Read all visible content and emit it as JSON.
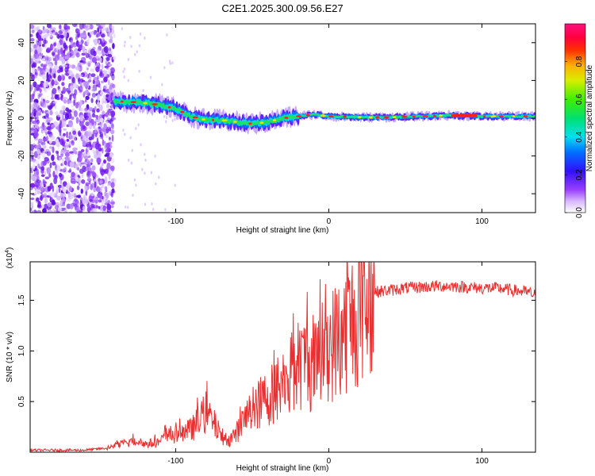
{
  "title": "C2E1.2025.300.09.56.E27",
  "chart_data": [
    {
      "type": "heatmap",
      "name": "spectrogram",
      "xlabel": "Height of straight line (km)",
      "ylabel": "Frequency (Hz)",
      "xlim": [
        -195,
        135
      ],
      "ylim": [
        -50,
        50
      ],
      "xticks": [
        -100,
        0,
        100
      ],
      "yticks": [
        -40,
        -20,
        0,
        20,
        40
      ],
      "colorbar": {
        "label": "Normalized spectral amplitude",
        "range": [
          0,
          1
        ],
        "ticks": [
          0.0,
          0.2,
          0.4,
          0.6,
          0.8
        ],
        "tick_labels": [
          "0.0",
          "0.2",
          "0.4",
          "0.6",
          "0.8"
        ]
      },
      "signal_ridge": {
        "x": [
          -140,
          -125,
          -110,
          -100,
          -90,
          -80,
          -70,
          -60,
          -50,
          -40,
          -30,
          -20,
          -10,
          0,
          20,
          40,
          60,
          80,
          100,
          120,
          135
        ],
        "y": [
          9,
          8.5,
          7,
          5,
          1,
          -1,
          -1,
          -2,
          -3,
          -2,
          0,
          1,
          2,
          1,
          0.5,
          0.5,
          1,
          1.5,
          1,
          1,
          1
        ]
      },
      "noise_region_x": [
        -195,
        -140
      ]
    },
    {
      "type": "line",
      "name": "snr",
      "xlabel": "Height of straight line (km)",
      "ylabel": "SNR (10 * v/v)",
      "y_multiplier": "(x10",
      "y_multiplier_exp": "4",
      "y_multiplier_close": ")",
      "xlim": [
        -195,
        135
      ],
      "ylim": [
        0,
        1.88
      ],
      "xticks": [
        -100,
        0,
        100
      ],
      "yticks": [
        0.5,
        1.0,
        1.5
      ],
      "ytick_labels": [
        "0.5",
        "1.0",
        "1.5"
      ],
      "color": "#e83030",
      "series": [
        {
          "name": "SNR",
          "x": [
            -195,
            -160,
            -145,
            -140,
            -130,
            -125,
            -120,
            -110,
            -105,
            -100,
            -90,
            -85,
            -80,
            -75,
            -70,
            -65,
            -60,
            -55,
            -50,
            -45,
            -40,
            -35,
            -30,
            -25,
            -20,
            -15,
            -10,
            -5,
            0,
            5,
            10,
            15,
            20,
            25,
            30,
            40,
            50,
            60,
            70,
            80,
            90,
            100,
            110,
            120,
            130,
            135
          ],
          "y": [
            0.02,
            0.02,
            0.04,
            0.06,
            0.1,
            0.12,
            0.08,
            0.1,
            0.18,
            0.16,
            0.22,
            0.3,
            0.4,
            0.28,
            0.16,
            0.12,
            0.2,
            0.32,
            0.42,
            0.48,
            0.55,
            0.6,
            0.7,
            0.75,
            0.85,
            0.9,
            0.85,
            0.95,
            1.05,
            1.1,
            1.2,
            1.3,
            1.4,
            1.5,
            1.58,
            1.6,
            1.62,
            1.63,
            1.64,
            1.64,
            1.63,
            1.62,
            1.62,
            1.6,
            1.58,
            1.55
          ]
        }
      ]
    }
  ]
}
